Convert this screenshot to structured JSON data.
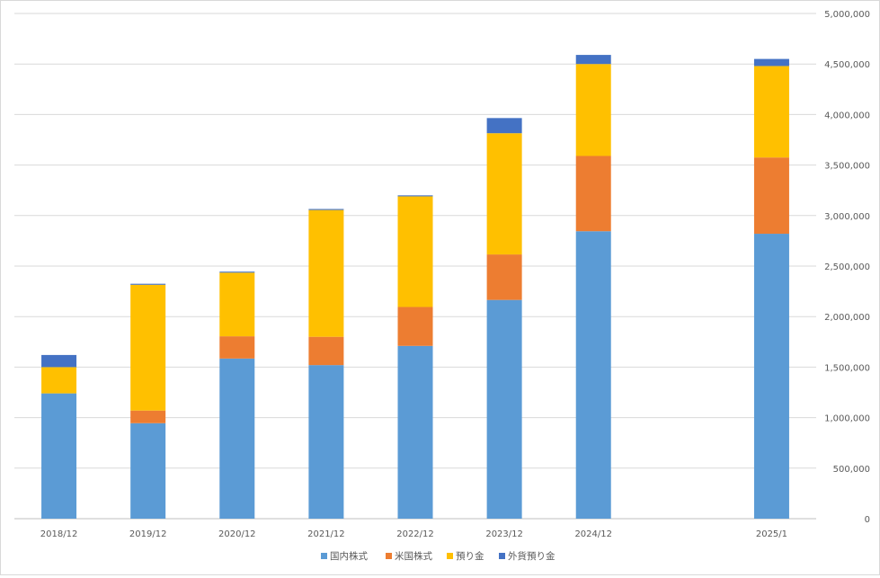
{
  "chart_data": {
    "type": "bar",
    "stacked": true,
    "title": "",
    "xlabel": "",
    "ylabel": "",
    "categories": [
      "2018/12",
      "2019/12",
      "2020/12",
      "2021/12",
      "2022/12",
      "2023/12",
      "2024/12",
      "",
      "2025/1"
    ],
    "series": [
      {
        "name": "国内株式",
        "color": "#5b9bd5",
        "values": [
          1240000,
          945000,
          1585000,
          1520000,
          1710000,
          2165000,
          2845000,
          0,
          2820000
        ]
      },
      {
        "name": "米国株式",
        "color": "#ed7d31",
        "values": [
          0,
          125000,
          220000,
          280000,
          385000,
          450000,
          745000,
          0,
          755000
        ]
      },
      {
        "name": "預り金",
        "color": "#ffc000",
        "values": [
          260000,
          1245000,
          630000,
          1255000,
          1095000,
          1200000,
          910000,
          0,
          905000
        ]
      },
      {
        "name": "外貨預り金",
        "color": "#4472c4",
        "values": [
          120000,
          10000,
          10000,
          10000,
          10000,
          150000,
          90000,
          0,
          70000
        ]
      }
    ],
    "ylim": [
      0,
      5000000
    ],
    "yticks": [
      0,
      500000,
      1000000,
      1500000,
      2000000,
      2500000,
      3000000,
      3500000,
      4000000,
      4500000,
      5000000
    ],
    "ytick_labels": [
      "0",
      "500,000",
      "1,000,000",
      "1,500,000",
      "2,000,000",
      "2,500,000",
      "3,000,000",
      "3,500,000",
      "4,000,000",
      "4,500,000",
      "5,000,000"
    ],
    "y_axis_side": "right",
    "grid": true,
    "legend_position": "bottom"
  }
}
